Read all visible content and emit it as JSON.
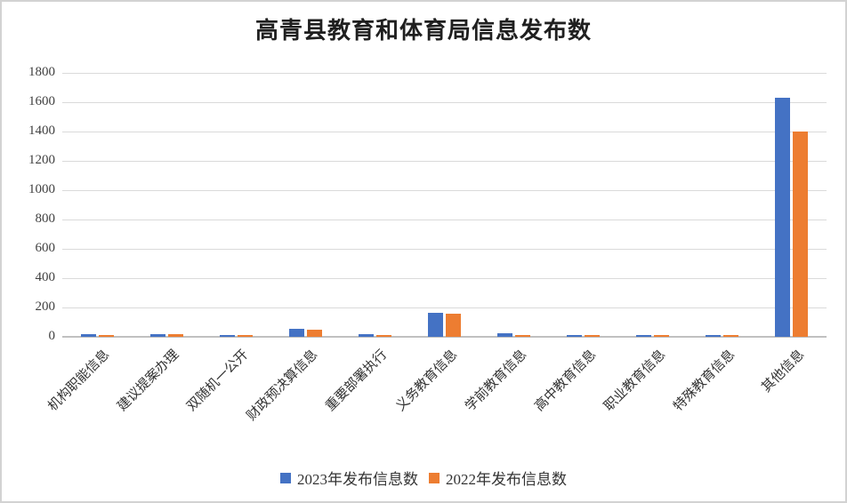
{
  "chart_data": {
    "type": "bar",
    "title": "高青县教育和体育局信息发布数",
    "categories": [
      "机构职能信息",
      "建议提案办理",
      "双随机一公开",
      "财政预决算信息",
      "重要部署执行",
      "义务教育信息",
      "学前教育信息",
      "高中教育信息",
      "职业教育信息",
      "特殊教育信息",
      "其他信息"
    ],
    "series": [
      {
        "name": "2023年发布信息数",
        "color": "#4472C4",
        "values": [
          20,
          20,
          12,
          55,
          20,
          165,
          25,
          15,
          15,
          15,
          1630
        ]
      },
      {
        "name": "2022年发布信息数",
        "color": "#ED7D31",
        "values": [
          10,
          20,
          10,
          50,
          15,
          160,
          10,
          10,
          10,
          10,
          1400
        ]
      }
    ],
    "xlabel": "",
    "ylabel": "",
    "ylim": [
      0,
      1800
    ],
    "ytick_step": 200,
    "yticks": [
      "1800",
      "1600",
      "1400",
      "1200",
      "1000",
      "800",
      "600",
      "400",
      "200",
      "0"
    ],
    "grid": true,
    "legend_position": "bottom",
    "colors": {
      "gridline": "#dadada",
      "axis_line": "#c0c0c0",
      "axis_text": "#3f3f3f",
      "title_text": "#1f1f1f"
    }
  }
}
